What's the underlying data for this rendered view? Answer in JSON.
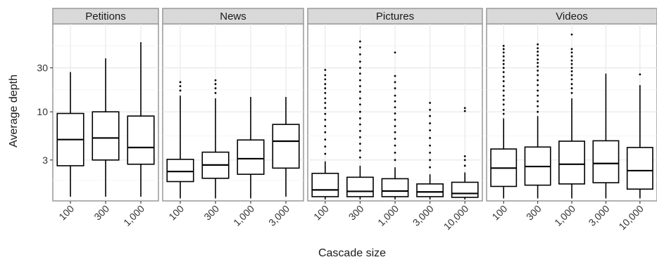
{
  "chart_data": {
    "type": "boxplot",
    "xlabel": "Cascade size",
    "ylabel": "Average depth",
    "y_scale": "log",
    "y_ticks": [
      3,
      10,
      30
    ],
    "y_tick_labels": [
      "3",
      "10",
      "30"
    ],
    "ylim": [
      1.08,
      90
    ],
    "grid": true,
    "facets": [
      {
        "name": "Petitions",
        "categories": [
          "100",
          "300",
          "1,000"
        ],
        "boxes": [
          {
            "min": 1.2,
            "q1": 2.6,
            "median": 5.0,
            "q3": 9.6,
            "max": 27
          },
          {
            "min": 1.2,
            "q1": 3.0,
            "median": 5.2,
            "q3": 10.0,
            "max": 38
          },
          {
            "min": 1.2,
            "q1": 2.7,
            "median": 4.1,
            "q3": 9.0,
            "max": 57
          }
        ]
      },
      {
        "name": "News",
        "categories": [
          "100",
          "300",
          "1,000",
          "3,000"
        ],
        "boxes": [
          {
            "min": 1.15,
            "q1": 1.75,
            "median": 2.25,
            "q3": 3.05,
            "max": 15,
            "outliers_above": [
              17,
              19,
              21
            ]
          },
          {
            "min": 1.15,
            "q1": 1.9,
            "median": 2.65,
            "q3": 3.65,
            "max": 14,
            "outliers_above": [
              16,
              18,
              20,
              22
            ]
          },
          {
            "min": 1.15,
            "q1": 2.1,
            "median": 3.1,
            "q3": 4.95,
            "max": 14.5
          },
          {
            "min": 1.2,
            "q1": 2.45,
            "median": 4.8,
            "q3": 7.3,
            "max": 14.5
          }
        ]
      },
      {
        "name": "Pictures",
        "categories": [
          "100",
          "300",
          "1,000",
          "3,000",
          "10,000"
        ],
        "boxes": [
          {
            "min": 1.12,
            "q1": 1.2,
            "median": 1.42,
            "q3": 2.15,
            "max": 2.9,
            "outliers_above": [
              3.5,
              4.2,
              5.0,
              6.0,
              7.0,
              8.2,
              9.5,
              11,
              12.5,
              14,
              16,
              18,
              20,
              22.5,
              25,
              28.5
            ]
          },
          {
            "min": 1.12,
            "q1": 1.2,
            "median": 1.37,
            "q3": 1.95,
            "max": 2.6,
            "outliers_above": [
              3.2,
              3.8,
              4.5,
              5.3,
              6.2,
              7.3,
              8.5,
              10,
              12,
              14,
              16.5,
              19,
              22,
              26,
              30,
              35,
              42,
              50,
              58
            ]
          },
          {
            "min": 1.12,
            "q1": 1.2,
            "median": 1.38,
            "q3": 1.88,
            "max": 2.5,
            "outliers_above": [
              3.0,
              3.6,
              4.3,
              5.1,
              6.0,
              7.0,
              8.2,
              9.6,
              11.2,
              13,
              15,
              18,
              21,
              24.5,
              44
            ]
          },
          {
            "min": 1.12,
            "q1": 1.2,
            "median": 1.35,
            "q3": 1.65,
            "max": 2.1,
            "outliers_above": [
              2.5,
              3.0,
              3.6,
              4.3,
              5.2,
              6.3,
              7.5,
              9,
              10.5,
              12.5
            ]
          },
          {
            "min": 1.12,
            "q1": 1.18,
            "median": 1.3,
            "q3": 1.72,
            "max": 2.2,
            "outliers_above": [
              2.6,
              3.0,
              3.3,
              10.2,
              11
            ]
          }
        ]
      },
      {
        "name": "Videos",
        "categories": [
          "100",
          "300",
          "1,000",
          "3,000",
          "10,000"
        ],
        "boxes": [
          {
            "min": 1.15,
            "q1": 1.55,
            "median": 2.45,
            "q3": 3.95,
            "max": 8.5,
            "outliers_above": [
              9.5,
              10.5,
              12,
              13.5,
              15,
              17,
              19,
              21.5,
              24,
              27,
              30,
              33,
              36,
              40,
              44,
              48,
              52
            ]
          },
          {
            "min": 1.15,
            "q1": 1.6,
            "median": 2.55,
            "q3": 4.15,
            "max": 9.0,
            "outliers_above": [
              10,
              11.5,
              13,
              15,
              17,
              19.5,
              22,
              25,
              28,
              31,
              34,
              37,
              41,
              45,
              49,
              54
            ]
          },
          {
            "min": 1.15,
            "q1": 1.65,
            "median": 2.7,
            "q3": 4.8,
            "max": 14,
            "outliers_above": [
              16,
              18,
              20,
              22.5,
              25,
              27.5,
              30,
              33,
              36,
              40,
              44,
              48,
              69
            ]
          },
          {
            "min": 1.15,
            "q1": 1.7,
            "median": 2.75,
            "q3": 4.85,
            "max": 26
          },
          {
            "min": 1.15,
            "q1": 1.45,
            "median": 2.3,
            "q3": 4.1,
            "max": 19.5,
            "outliers_above": [
              25.5
            ]
          }
        ]
      }
    ]
  }
}
